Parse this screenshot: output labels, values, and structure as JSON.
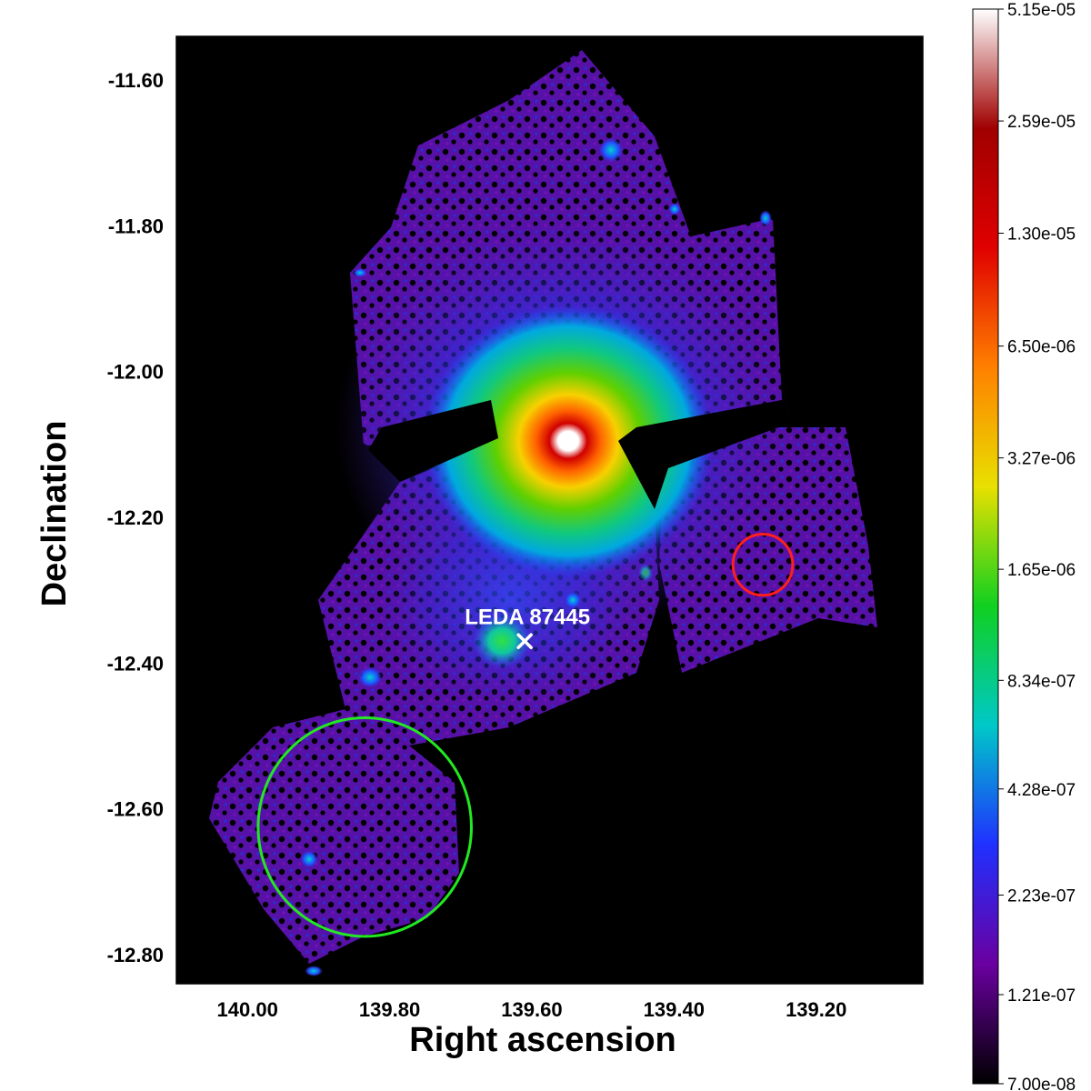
{
  "chart_data": {
    "type": "heatmap",
    "title": "",
    "xlabel": "Right ascension",
    "ylabel": "Declination",
    "x_reversed": true,
    "xlim": [
      140.1,
      139.05
    ],
    "ylim": [
      -12.84,
      -11.54
    ],
    "x_ticks": [
      140.0,
      139.8,
      139.6,
      139.4,
      139.2
    ],
    "x_tick_labels": [
      "140.00",
      "139.80",
      "139.60",
      "139.40",
      "139.20"
    ],
    "y_ticks": [
      -11.6,
      -11.8,
      -12.0,
      -12.2,
      -12.4,
      -12.6,
      -12.8
    ],
    "y_tick_labels": [
      "-11.60",
      "-11.80",
      "-12.00",
      "-12.20",
      "-12.40",
      "-12.60",
      "-12.80"
    ],
    "background_color": "#000000",
    "colorbar": {
      "scale": "log",
      "min": 7e-08,
      "max": 5.15e-05,
      "tick_labels": [
        "5.15e-05",
        "2.59e-05",
        "1.30e-05",
        "6.50e-06",
        "3.27e-06",
        "1.65e-06",
        "8.34e-07",
        "4.28e-07",
        "2.23e-07",
        "1.21e-07",
        "7.00e-08"
      ],
      "colors": [
        "#000000",
        "#6a00a0",
        "#2030ff",
        "#00c8c8",
        "#10d020",
        "#e8e000",
        "#ff8000",
        "#e00000",
        "#a00000",
        "#ffffff"
      ]
    },
    "emission_peak": {
      "ra": 139.525,
      "dec": -12.095
    },
    "annotations": [
      {
        "type": "marker",
        "shape": "x",
        "ra": 139.61,
        "dec": -12.37,
        "label": "LEDA 87445",
        "color": "#ffffff"
      }
    ],
    "regions": [
      {
        "type": "circle",
        "ra": 139.835,
        "dec": -12.625,
        "radius_deg": 0.15,
        "color": "#22e822"
      },
      {
        "type": "circle",
        "ra": 139.275,
        "dec": -12.265,
        "radius_deg": 0.042,
        "color": "#ff1e1e"
      }
    ]
  }
}
